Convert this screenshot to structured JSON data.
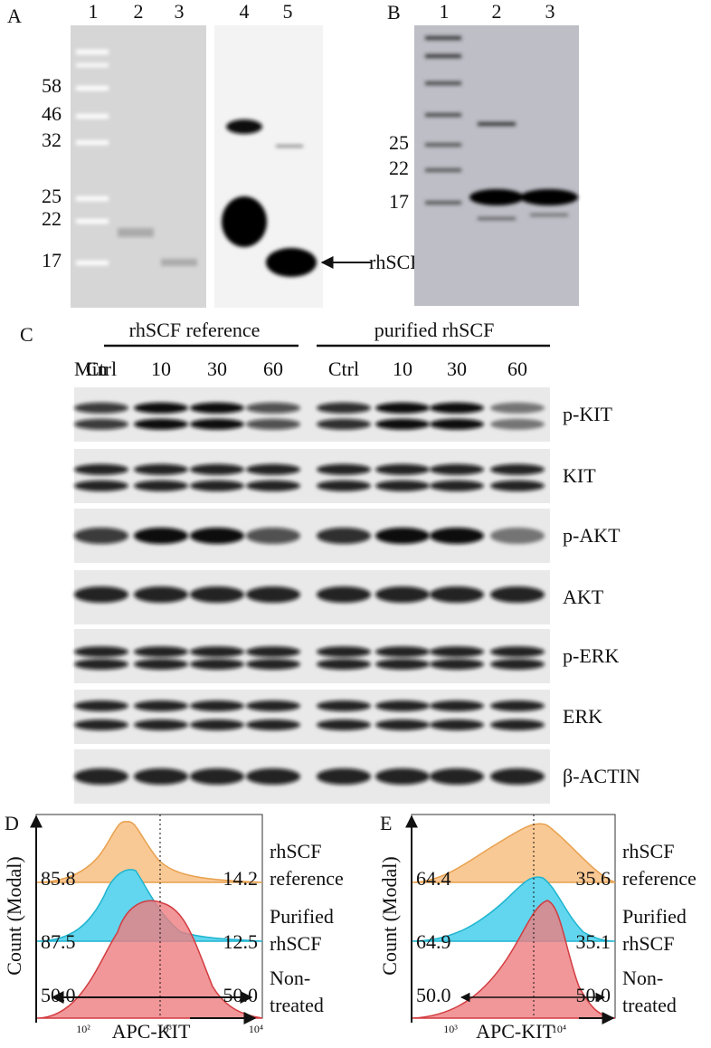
{
  "panels": {
    "A": {
      "label": "A",
      "lanes": [
        "1",
        "2",
        "3",
        "4",
        "5"
      ],
      "markers": [
        "58",
        "46",
        "32",
        "25",
        "22",
        "17"
      ],
      "arrow_label": "rhSCF"
    },
    "B": {
      "label": "B",
      "lanes": [
        "1",
        "2",
        "3"
      ],
      "markers": [
        "25",
        "22",
        "17"
      ]
    },
    "C": {
      "label": "C",
      "groups": [
        "rhSCF reference",
        "purified rhSCF"
      ],
      "time_label": "Min",
      "times": [
        "Ctrl",
        "10",
        "30",
        "60",
        "Ctrl",
        "10",
        "30",
        "60"
      ],
      "blots": [
        "p-KIT",
        "KIT",
        "p-AKT",
        "AKT",
        "p-ERK",
        "ERK",
        "β-ACTIN"
      ]
    },
    "D": {
      "label": "D",
      "y_label": "Count (Modal)",
      "x_label": "APC-KIT",
      "x_ticks": [
        "10²",
        "10³",
        "10⁴"
      ],
      "rows": [
        {
          "name": [
            "rhSCF",
            "reference"
          ],
          "left": "85.8",
          "right": "14.2"
        },
        {
          "name": [
            "Purified",
            "rhSCF"
          ],
          "left": "87.5",
          "right": "12.5"
        },
        {
          "name": [
            "Non-",
            "treated"
          ],
          "left": "50.0",
          "right": "50.0"
        }
      ]
    },
    "E": {
      "label": "E",
      "y_label": "Count (Modal)",
      "x_label": "APC-KIT",
      "x_ticks": [
        "10³",
        "10⁴"
      ],
      "rows": [
        {
          "name": [
            "rhSCF",
            "reference"
          ],
          "left": "64.4",
          "right": "35.6"
        },
        {
          "name": [
            "Purified",
            "rhSCF"
          ],
          "left": "64.9",
          "right": "35.1"
        },
        {
          "name": [
            "Non-",
            "treated"
          ],
          "left": "50.0",
          "right": "50.0"
        }
      ]
    }
  }
}
